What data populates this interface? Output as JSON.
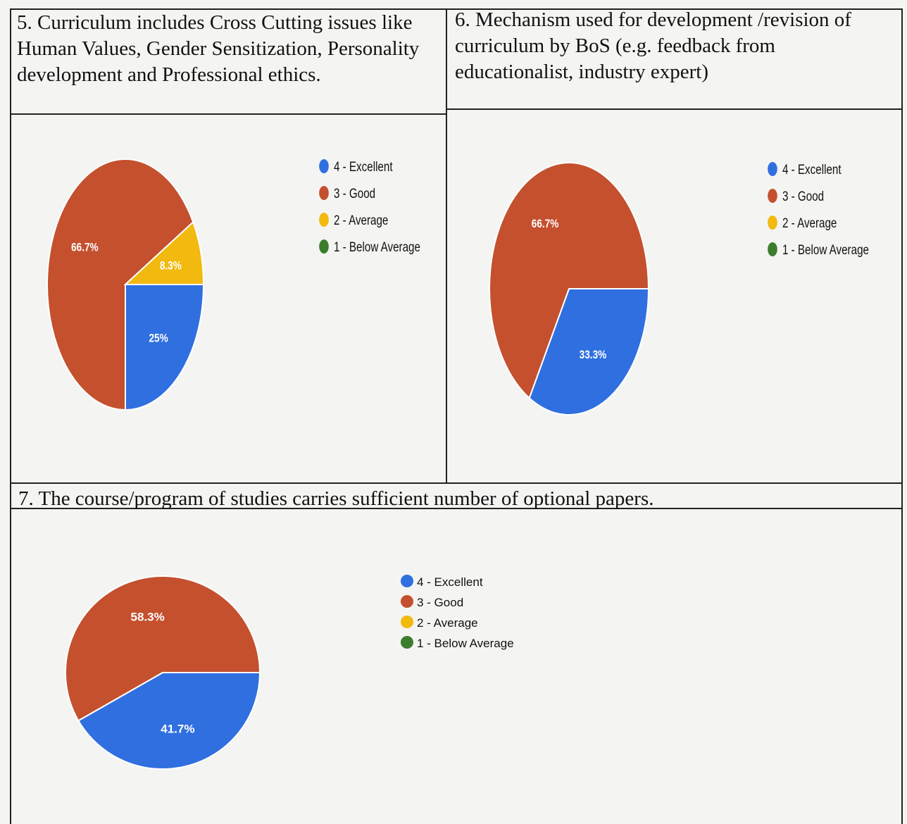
{
  "questions": {
    "q5": "5. Curriculum includes Cross Cutting issues like Human Values, Gender Sensitization, Personality development and Professional ethics.",
    "q6": "6. Mechanism used for development /revision of curriculum by BoS (e.g. feedback from educationalist, industry expert)",
    "q7": "7. The course/program of studies carries sufficient number of optional papers."
  },
  "colors": {
    "excellent": "#2f6fe0",
    "good": "#c4502e",
    "average": "#f2b90f",
    "below_average": "#3b7d2c"
  },
  "chart_data": [
    {
      "type": "pie",
      "title": "",
      "categories": [
        "4 - Excellent",
        "3 - Good",
        "2 - Average",
        "1 - Below Average"
      ],
      "values": [
        25,
        66.7,
        8.3,
        0
      ],
      "labels": [
        "25%",
        "66.7%",
        "8.3%",
        ""
      ],
      "legend": "right"
    },
    {
      "type": "pie",
      "title": "",
      "categories": [
        "4 - Excellent",
        "3 - Good",
        "2 - Average",
        "1 - Below Average"
      ],
      "values": [
        33.3,
        66.7,
        0,
        0
      ],
      "labels": [
        "33.3%",
        "66.7%",
        "",
        ""
      ],
      "legend": "right"
    },
    {
      "type": "pie",
      "title": "",
      "categories": [
        "4 - Excellent",
        "3 - Good",
        "2 - Average",
        "1 - Below Average"
      ],
      "values": [
        41.7,
        58.3,
        0,
        0
      ],
      "labels": [
        "41.7%",
        "58.3%",
        "",
        ""
      ],
      "legend": "right"
    }
  ]
}
